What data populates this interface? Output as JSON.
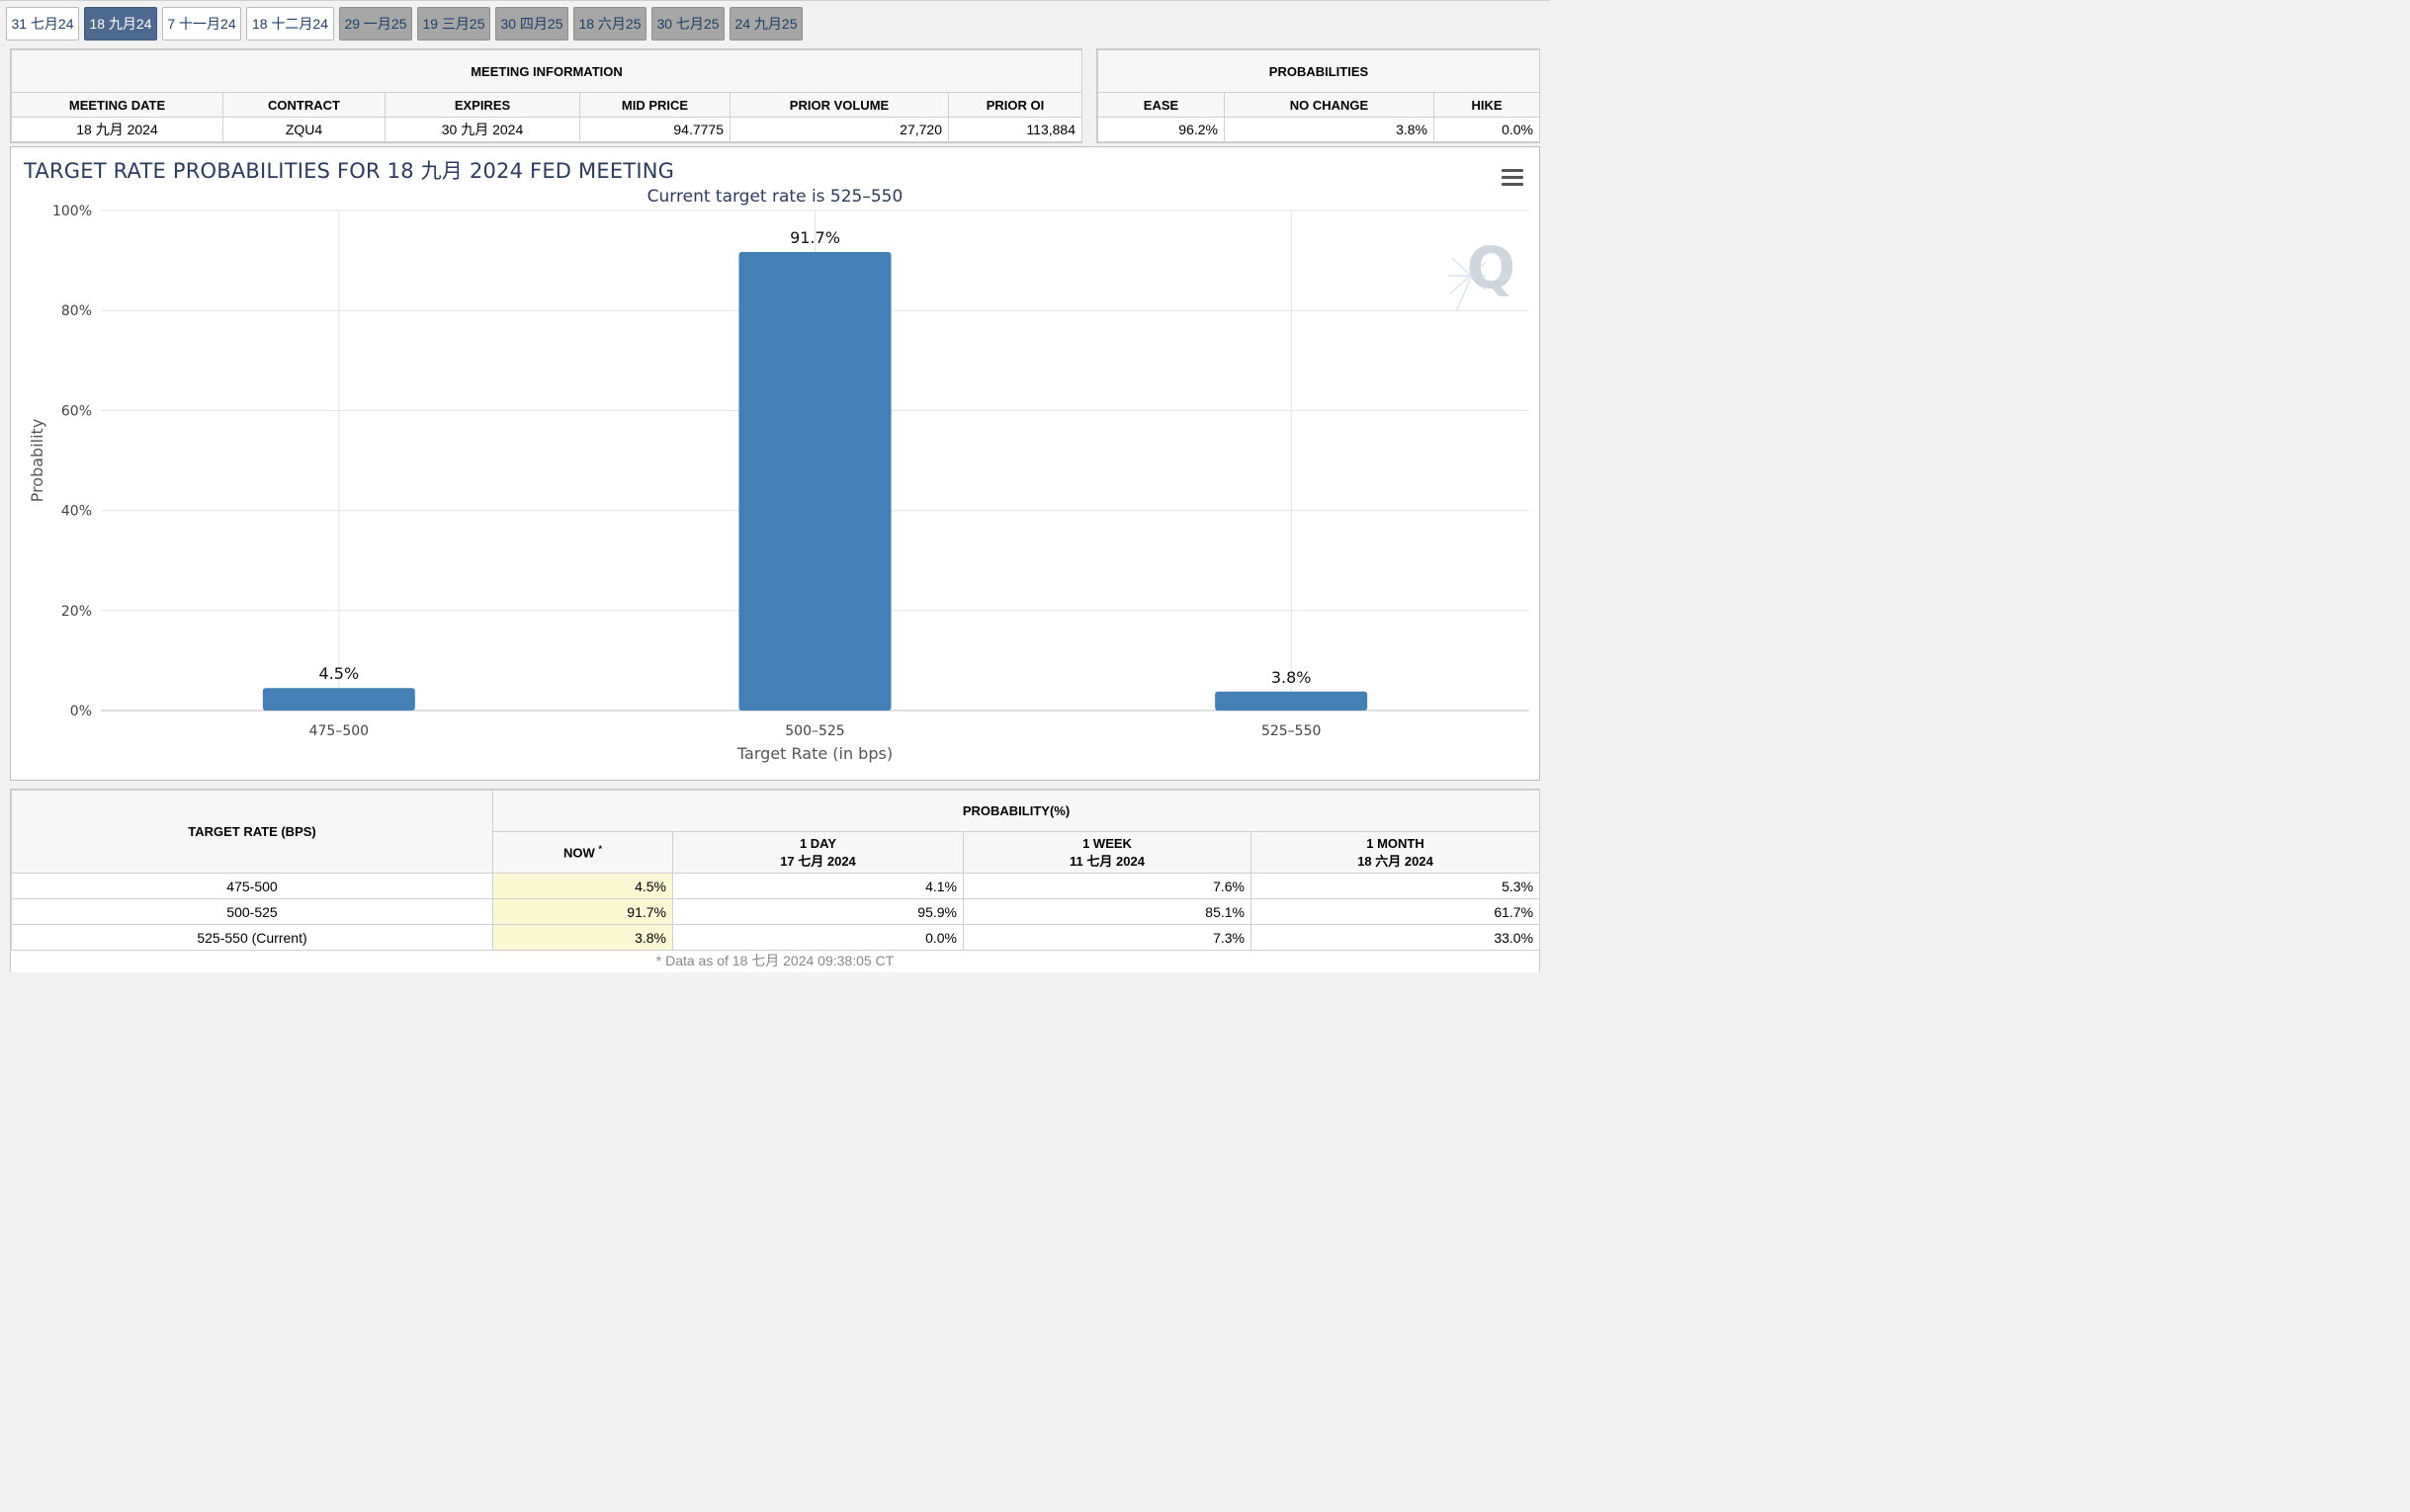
{
  "tabs": [
    {
      "label": "31 七月24",
      "state": "past"
    },
    {
      "label": "18 九月24",
      "state": "active"
    },
    {
      "label": "7 十一月24",
      "state": "past"
    },
    {
      "label": "18 十二月24",
      "state": "past"
    },
    {
      "label": "29 一月25",
      "state": "future"
    },
    {
      "label": "19 三月25",
      "state": "future"
    },
    {
      "label": "30 四月25",
      "state": "future"
    },
    {
      "label": "18 六月25",
      "state": "future"
    },
    {
      "label": "30 七月25",
      "state": "future"
    },
    {
      "label": "24 九月25",
      "state": "future"
    }
  ],
  "meeting_info": {
    "title": "MEETING INFORMATION",
    "headers": [
      "MEETING DATE",
      "CONTRACT",
      "EXPIRES",
      "MID PRICE",
      "PRIOR VOLUME",
      "PRIOR OI"
    ],
    "row": [
      "18 九月 2024",
      "ZQU4",
      "30 九月 2024",
      "94.7775",
      "27,720",
      "113,884"
    ]
  },
  "probabilities_box": {
    "title": "PROBABILITIES",
    "headers": [
      "EASE",
      "NO CHANGE",
      "HIKE"
    ],
    "row": [
      "96.2%",
      "3.8%",
      "0.0%"
    ]
  },
  "chart_data": {
    "type": "bar",
    "title": "TARGET RATE PROBABILITIES FOR 18 九月 2024 FED MEETING",
    "subtitle": "Current target rate is 525–550",
    "xlabel": "Target Rate (in bps)",
    "ylabel": "Probability",
    "categories": [
      "475–500",
      "500–525",
      "525–550"
    ],
    "values": [
      4.5,
      91.7,
      3.8
    ],
    "data_labels": [
      "4.5%",
      "91.7%",
      "3.8%"
    ],
    "ylim": [
      0,
      100
    ],
    "yticks": [
      0,
      20,
      40,
      60,
      80,
      100
    ],
    "ytick_labels": [
      "0%",
      "20%",
      "40%",
      "60%",
      "80%",
      "100%"
    ],
    "grid": true,
    "bar_color": "#4480b5"
  },
  "prob_table": {
    "col0_header": "TARGET RATE (BPS)",
    "group_header": "PROBABILITY(%)",
    "now_header": "NOW",
    "now_mark": "*",
    "periods": [
      {
        "label": "1 DAY",
        "date": "17 七月 2024"
      },
      {
        "label": "1 WEEK",
        "date": "11 七月 2024"
      },
      {
        "label": "1 MONTH",
        "date": "18 六月 2024"
      }
    ],
    "rows": [
      {
        "rate": "475-500",
        "now": "4.5%",
        "d1": "4.1%",
        "w1": "7.6%",
        "m1": "5.3%"
      },
      {
        "rate": "500-525",
        "now": "91.7%",
        "d1": "95.9%",
        "w1": "85.1%",
        "m1": "61.7%"
      },
      {
        "rate": "525-550 (Current)",
        "now": "3.8%",
        "d1": "0.0%",
        "w1": "7.3%",
        "m1": "33.0%"
      }
    ],
    "footnote": "* Data as of 18 七月 2024 09:38:05 CT"
  },
  "colors": {
    "tab_active": "#4d6a8e",
    "tab_future": "#a6a6a6",
    "now_highlight": "#fbf9d4",
    "title_text": "#2b3b5e"
  },
  "icons": {
    "menu": "hamburger-menu-icon",
    "watermark": "q-logo"
  }
}
